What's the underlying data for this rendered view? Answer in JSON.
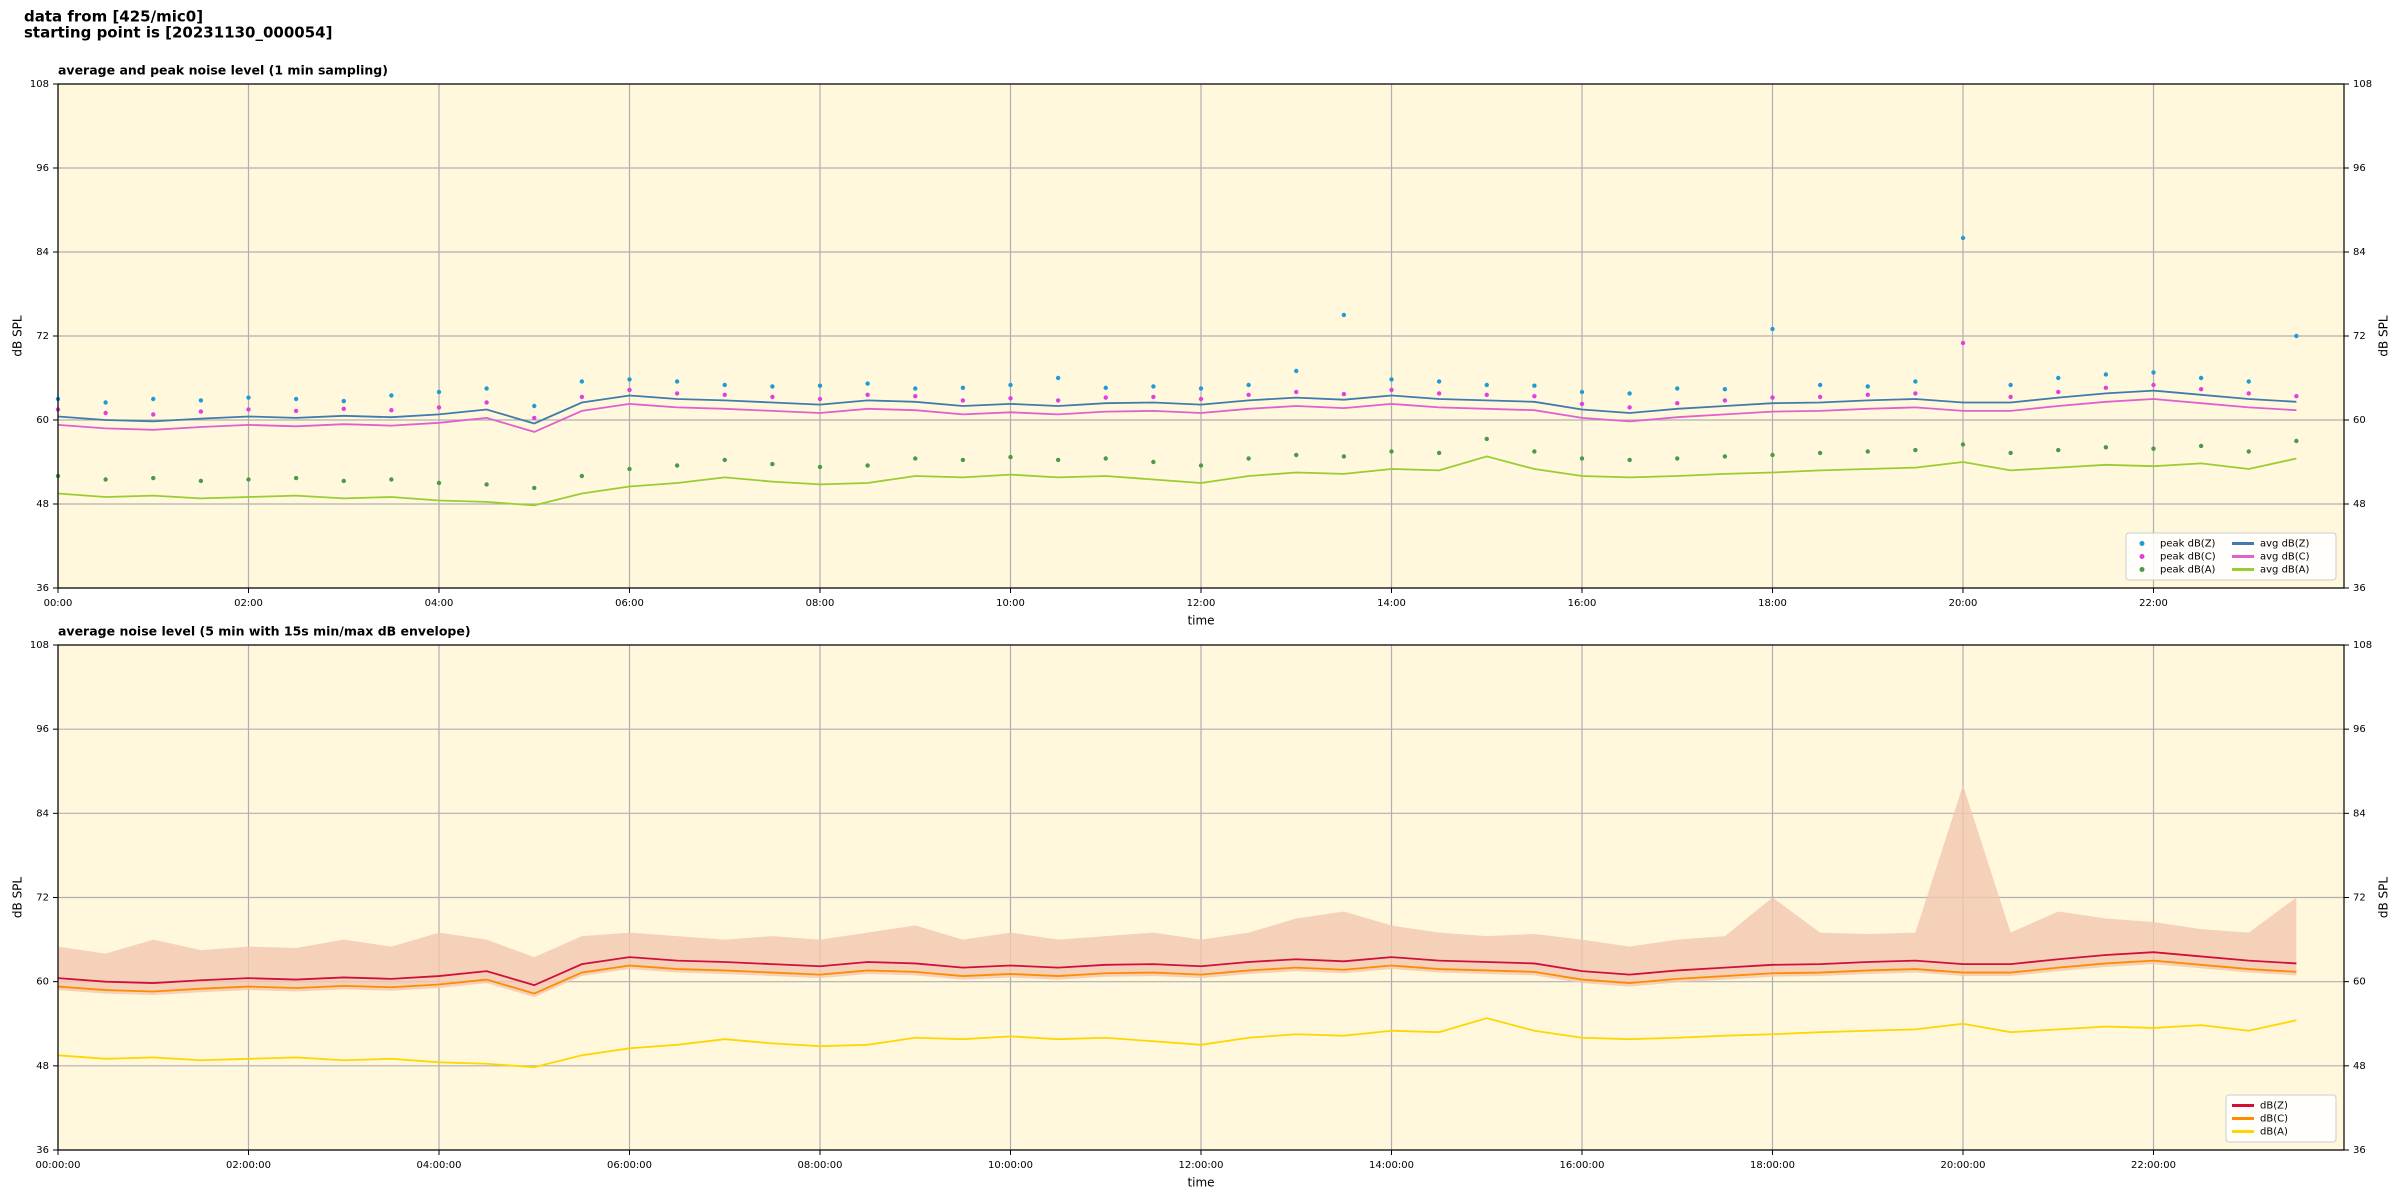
{
  "header": [
    "data from [425/mic0]",
    "starting point is [20231130_000054]"
  ],
  "chart_data": [
    {
      "type": "line",
      "title": "average and peak noise level (1 min sampling)",
      "xlabel": "time",
      "ylabel": "dB SPL",
      "background": "#fff8dc",
      "grid": true,
      "legend": "lower right",
      "legend_columns": 2,
      "xlim": [
        0,
        24
      ],
      "ylim": [
        36,
        108
      ],
      "yticks": [
        36,
        48,
        60,
        72,
        84,
        96,
        108
      ],
      "xticks": [
        {
          "value": 0,
          "label": "00:00"
        },
        {
          "value": 2,
          "label": "02:00"
        },
        {
          "value": 4,
          "label": "04:00"
        },
        {
          "value": 6,
          "label": "06:00"
        },
        {
          "value": 8,
          "label": "08:00"
        },
        {
          "value": 10,
          "label": "10:00"
        },
        {
          "value": 12,
          "label": "12:00"
        },
        {
          "value": 14,
          "label": "14:00"
        },
        {
          "value": 16,
          "label": "16:00"
        },
        {
          "value": 18,
          "label": "18:00"
        },
        {
          "value": 20,
          "label": "20:00"
        },
        {
          "value": 22,
          "label": "22:00"
        }
      ],
      "x": [
        0,
        0.5,
        1,
        1.5,
        2,
        2.5,
        3,
        3.5,
        4,
        4.5,
        5,
        5.5,
        6,
        6.5,
        7,
        7.5,
        8,
        8.5,
        9,
        9.5,
        10,
        10.5,
        11,
        11.5,
        12,
        12.5,
        13,
        13.5,
        14,
        14.5,
        15,
        15.5,
        16,
        16.5,
        17,
        17.5,
        18,
        18.5,
        19,
        19.5,
        20,
        20.5,
        21,
        21.5,
        22,
        22.5,
        23,
        23.5
      ],
      "series": [
        {
          "name": "peak dB(Z)",
          "type": "scatter",
          "color": "#1f9bd8",
          "values": [
            63,
            62.5,
            63,
            62.8,
            63.2,
            63,
            62.7,
            63.5,
            64,
            64.5,
            62,
            65.5,
            65.8,
            65.5,
            65,
            64.8,
            64.9,
            65.2,
            64.5,
            64.6,
            65,
            66,
            64.6,
            64.8,
            64.5,
            65,
            67,
            75,
            65.8,
            65.5,
            65,
            64.9,
            64,
            63.8,
            64.5,
            64.4,
            73,
            65,
            64.8,
            65.5,
            86,
            65,
            66,
            66.5,
            66.8,
            66,
            65.5,
            72
          ]
        },
        {
          "name": "peak dB(C)",
          "type": "scatter",
          "color": "#e040e0",
          "values": [
            61.5,
            61,
            60.8,
            61.2,
            61.5,
            61.3,
            61.6,
            61.4,
            61.8,
            62.5,
            60.3,
            63.3,
            64.3,
            63.8,
            63.6,
            63.3,
            63,
            63.6,
            63.4,
            62.8,
            63.1,
            62.8,
            63.2,
            63.3,
            63,
            63.6,
            64,
            63.7,
            64.3,
            63.8,
            63.6,
            63.4,
            62.3,
            61.8,
            62.4,
            62.8,
            63.2,
            63.3,
            63.6,
            63.8,
            71,
            63.3,
            64,
            64.6,
            65,
            64.4,
            63.8,
            63.4
          ]
        },
        {
          "name": "peak dB(A)",
          "type": "scatter",
          "color": "#4a9a4a",
          "values": [
            52,
            51.5,
            51.7,
            51.3,
            51.5,
            51.7,
            51.3,
            51.5,
            51,
            50.8,
            50.3,
            52,
            53,
            53.5,
            54.3,
            53.7,
            53.3,
            53.5,
            54.5,
            54.3,
            54.7,
            54.3,
            54.5,
            54,
            53.5,
            54.5,
            55,
            54.8,
            55.5,
            55.3,
            57.3,
            55.5,
            54.5,
            54.3,
            54.5,
            54.8,
            55,
            55.3,
            55.5,
            55.7,
            56.5,
            55.3,
            55.7,
            56.1,
            55.9,
            56.3,
            55.5,
            57
          ]
        },
        {
          "name": "avg dB(Z)",
          "type": "line",
          "color": "#3f7cad",
          "values": [
            60.5,
            60,
            59.8,
            60.2,
            60.5,
            60.3,
            60.6,
            60.4,
            60.8,
            61.5,
            59.5,
            62.5,
            63.5,
            63,
            62.8,
            62.5,
            62.2,
            62.8,
            62.6,
            62,
            62.3,
            62,
            62.4,
            62.5,
            62.2,
            62.8,
            63.2,
            62.9,
            63.5,
            63,
            62.8,
            62.6,
            61.5,
            61,
            61.6,
            62,
            62.4,
            62.5,
            62.8,
            63,
            62.5,
            62.5,
            63.2,
            63.8,
            64.2,
            63.6,
            63,
            62.6
          ]
        },
        {
          "name": "avg dB(C)",
          "type": "line",
          "color": "#e060d0",
          "values": [
            59.3,
            58.8,
            58.6,
            59,
            59.3,
            59.1,
            59.4,
            59.2,
            59.6,
            60.3,
            58.3,
            61.3,
            62.3,
            61.8,
            61.6,
            61.3,
            61,
            61.6,
            61.4,
            60.8,
            61.1,
            60.8,
            61.2,
            61.3,
            61,
            61.6,
            62,
            61.7,
            62.3,
            61.8,
            61.6,
            61.4,
            60.3,
            59.8,
            60.4,
            60.8,
            61.2,
            61.3,
            61.6,
            61.8,
            61.3,
            61.3,
            62,
            62.6,
            63,
            62.4,
            61.8,
            61.4
          ]
        },
        {
          "name": "avg dB(A)",
          "type": "line",
          "color": "#9acd32",
          "values": [
            49.5,
            49,
            49.2,
            48.8,
            49,
            49.2,
            48.8,
            49,
            48.5,
            48.3,
            47.8,
            49.5,
            50.5,
            51,
            51.8,
            51.2,
            50.8,
            51,
            52,
            51.8,
            52.2,
            51.8,
            52,
            51.5,
            51,
            52,
            52.5,
            52.3,
            53,
            52.8,
            54.8,
            53,
            52,
            51.8,
            52,
            52.3,
            52.5,
            52.8,
            53,
            53.2,
            54,
            52.8,
            53.2,
            53.6,
            53.4,
            53.8,
            53,
            54.5
          ]
        }
      ]
    },
    {
      "type": "line",
      "title": "average noise level (5 min with 15s min/max dB envelope)",
      "xlabel": "time",
      "ylabel": "dB SPL",
      "background": "#fff8dc",
      "grid": true,
      "legend": "lower right",
      "legend_columns": 1,
      "xlim": [
        0,
        24
      ],
      "ylim": [
        36,
        108
      ],
      "yticks": [
        36,
        48,
        60,
        72,
        84,
        96,
        108
      ],
      "xticks": [
        {
          "value": 0,
          "label": "00:00:00"
        },
        {
          "value": 2,
          "label": "02:00:00"
        },
        {
          "value": 4,
          "label": "04:00:00"
        },
        {
          "value": 6,
          "label": "06:00:00"
        },
        {
          "value": 8,
          "label": "08:00:00"
        },
        {
          "value": 10,
          "label": "10:00:00"
        },
        {
          "value": 12,
          "label": "12:00:00"
        },
        {
          "value": 14,
          "label": "14:00:00"
        },
        {
          "value": 16,
          "label": "16:00:00"
        },
        {
          "value": 18,
          "label": "18:00:00"
        },
        {
          "value": 20,
          "label": "20:00:00"
        },
        {
          "value": 22,
          "label": "22:00:00"
        }
      ],
      "x": [
        0,
        0.5,
        1,
        1.5,
        2,
        2.5,
        3,
        3.5,
        4,
        4.5,
        5,
        5.5,
        6,
        6.5,
        7,
        7.5,
        8,
        8.5,
        9,
        9.5,
        10,
        10.5,
        11,
        11.5,
        12,
        12.5,
        13,
        13.5,
        14,
        14.5,
        15,
        15.5,
        16,
        16.5,
        17,
        17.5,
        18,
        18.5,
        19,
        19.5,
        20,
        20.5,
        21,
        21.5,
        22,
        22.5,
        23,
        23.5
      ],
      "band": {
        "color": "#f4c7b0",
        "upper": [
          65,
          64,
          66,
          64.5,
          65,
          64.8,
          66,
          65,
          67,
          66,
          63.5,
          66.5,
          67,
          66.5,
          66,
          66.5,
          66,
          67,
          68,
          66,
          67,
          66,
          66.5,
          67,
          66,
          67,
          69,
          70,
          68,
          67,
          66.5,
          66.8,
          66,
          65,
          66,
          66.5,
          72,
          67,
          66.8,
          67,
          88,
          67,
          70,
          69,
          68.5,
          67.5,
          67,
          72
        ],
        "lower": [
          58.8,
          58.3,
          58.1,
          58.5,
          58.8,
          58.6,
          58.9,
          58.7,
          59.1,
          59.8,
          57.8,
          60.8,
          61.8,
          61.3,
          61.1,
          60.8,
          60.5,
          61.1,
          60.9,
          60.3,
          60.6,
          60.3,
          60.7,
          60.8,
          60.5,
          61.1,
          61.5,
          61.2,
          61.8,
          61.3,
          61.1,
          60.9,
          59.8,
          59.3,
          59.9,
          60.3,
          60.7,
          60.8,
          61.1,
          61.3,
          60.8,
          60.8,
          61.5,
          62.1,
          62.5,
          61.9,
          61.3,
          60.9
        ]
      },
      "series": [
        {
          "name": "dB(Z)",
          "type": "line",
          "color": "#d0103a",
          "values": [
            60.5,
            60,
            59.8,
            60.2,
            60.5,
            60.3,
            60.6,
            60.4,
            60.8,
            61.5,
            59.5,
            62.5,
            63.5,
            63,
            62.8,
            62.5,
            62.2,
            62.8,
            62.6,
            62,
            62.3,
            62,
            62.4,
            62.5,
            62.2,
            62.8,
            63.2,
            62.9,
            63.5,
            63,
            62.8,
            62.6,
            61.5,
            61,
            61.6,
            62,
            62.4,
            62.5,
            62.8,
            63,
            62.5,
            62.5,
            63.2,
            63.8,
            64.2,
            63.6,
            63,
            62.6
          ]
        },
        {
          "name": "dB(C)",
          "type": "line",
          "color": "#ff8c00",
          "values": [
            59.3,
            58.8,
            58.6,
            59,
            59.3,
            59.1,
            59.4,
            59.2,
            59.6,
            60.3,
            58.3,
            61.3,
            62.3,
            61.8,
            61.6,
            61.3,
            61,
            61.6,
            61.4,
            60.8,
            61.1,
            60.8,
            61.2,
            61.3,
            61,
            61.6,
            62,
            61.7,
            62.3,
            61.8,
            61.6,
            61.4,
            60.3,
            59.8,
            60.4,
            60.8,
            61.2,
            61.3,
            61.6,
            61.8,
            61.3,
            61.3,
            62,
            62.6,
            63,
            62.4,
            61.8,
            61.4
          ]
        },
        {
          "name": "dB(A)",
          "type": "line",
          "color": "#ffd700",
          "values": [
            49.5,
            49,
            49.2,
            48.8,
            49,
            49.2,
            48.8,
            49,
            48.5,
            48.3,
            47.8,
            49.5,
            50.5,
            51,
            51.8,
            51.2,
            50.8,
            51,
            52,
            51.8,
            52.2,
            51.8,
            52,
            51.5,
            51,
            52,
            52.5,
            52.3,
            53,
            52.8,
            54.8,
            53,
            52,
            51.8,
            52,
            52.3,
            52.5,
            52.8,
            53,
            53.2,
            54,
            52.8,
            53.2,
            53.6,
            53.4,
            53.8,
            53,
            54.5
          ]
        }
      ]
    }
  ]
}
